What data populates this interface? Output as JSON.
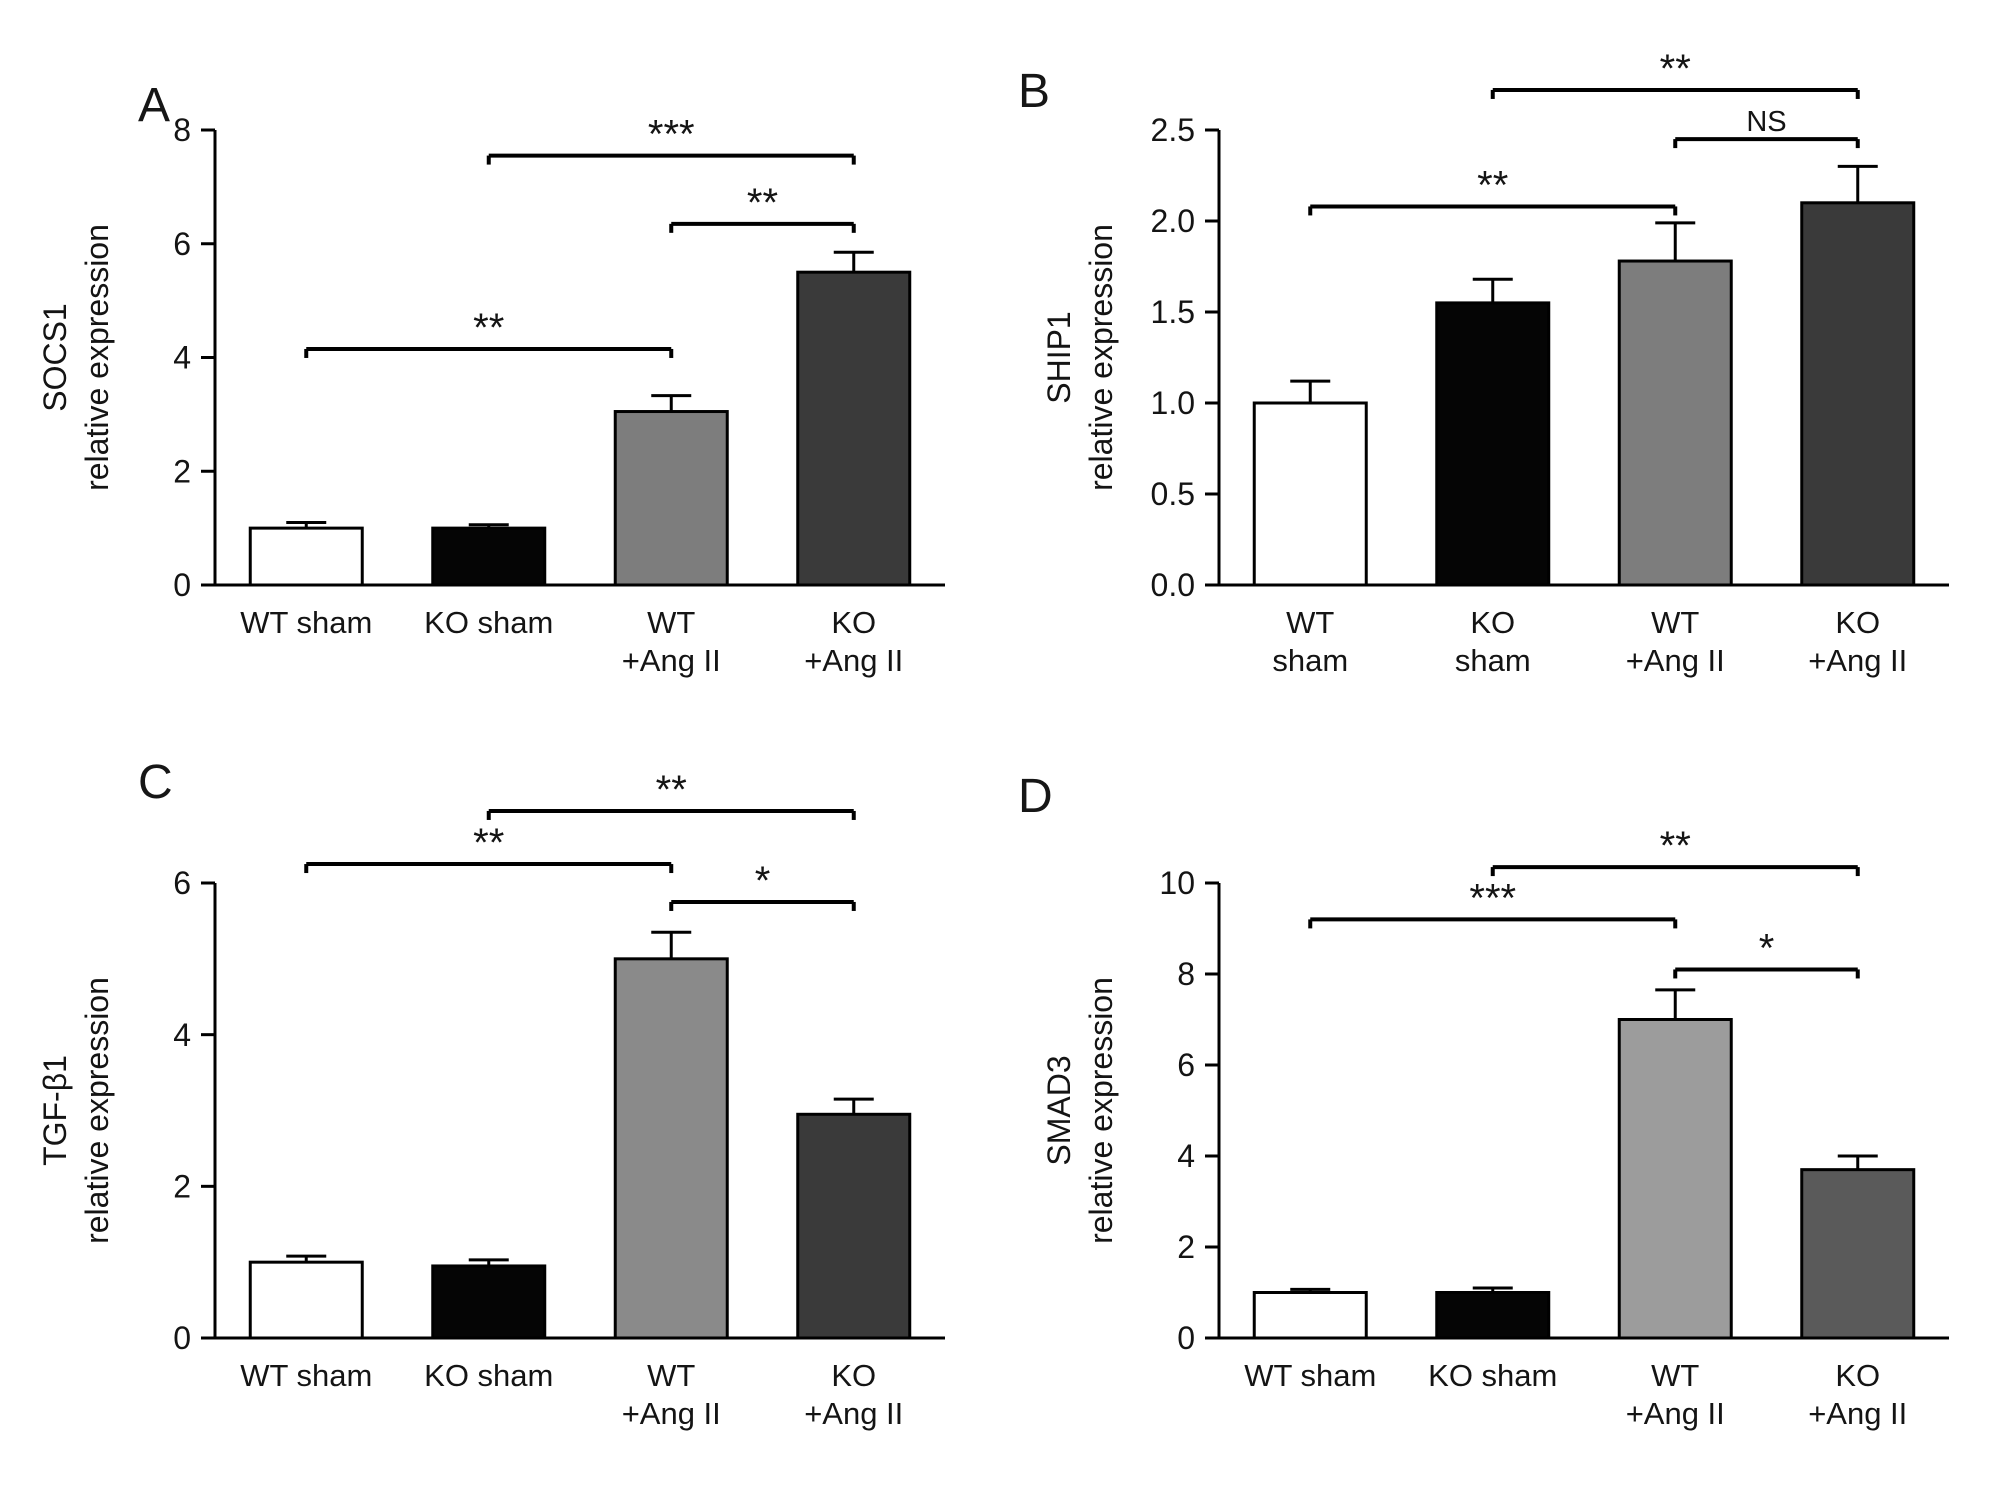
{
  "style": {
    "background": "#ffffff",
    "axis_color": "#000000",
    "text_color": "#141414"
  },
  "chart_data": [
    {
      "type": "bar",
      "panel_letter": "A",
      "ylabel_line1": "SOCS1",
      "ylabel_line2": "relative expression",
      "categories": [
        [
          "WT sham"
        ],
        [
          "KO sham"
        ],
        [
          "WT",
          "+Ang II"
        ],
        [
          "KO",
          "+Ang II"
        ]
      ],
      "values": [
        1.0,
        1.0,
        3.05,
        5.5
      ],
      "errors": [
        0.1,
        0.06,
        0.28,
        0.35
      ],
      "bar_colors": [
        "#ffffff",
        "#050505",
        "#7d7d7d",
        "#3a3a3a"
      ],
      "ylim": [
        0,
        8
      ],
      "yticks": [
        0,
        2,
        4,
        6,
        8
      ],
      "ytick_labels": [
        "0",
        "2",
        "4",
        "6",
        "8"
      ],
      "grid": false,
      "legend": "none",
      "significance": [
        {
          "from": 0,
          "to": 2,
          "y": 4.15,
          "label": "**"
        },
        {
          "from": 2,
          "to": 3,
          "y": 6.35,
          "label": "**"
        },
        {
          "from": 1,
          "to": 3,
          "y": 7.55,
          "label": "***"
        }
      ]
    },
    {
      "type": "bar",
      "panel_letter": "B",
      "ylabel_line1": "SHIP1",
      "ylabel_line2": "relative expression",
      "categories": [
        [
          "WT",
          "sham"
        ],
        [
          "KO",
          "sham"
        ],
        [
          "WT",
          "+Ang II"
        ],
        [
          "KO",
          "+Ang II"
        ]
      ],
      "values": [
        1.0,
        1.55,
        1.78,
        2.1
      ],
      "errors": [
        0.12,
        0.13,
        0.21,
        0.2
      ],
      "bar_colors": [
        "#ffffff",
        "#050505",
        "#7d7d7d",
        "#3a3a3a"
      ],
      "ylim": [
        0,
        2.5
      ],
      "yticks": [
        0,
        0.5,
        1,
        1.5,
        2,
        2.5
      ],
      "ytick_labels": [
        "0.0",
        "0.5",
        "1.0",
        "1.5",
        "2.0",
        "2.5"
      ],
      "grid": false,
      "legend": "none",
      "significance": [
        {
          "from": 0,
          "to": 2,
          "y": 2.08,
          "label": "**"
        },
        {
          "from": 2,
          "to": 3,
          "y": 2.45,
          "label": "NS"
        },
        {
          "from": 1,
          "to": 3,
          "y": 2.72,
          "label": "**"
        }
      ]
    },
    {
      "type": "bar",
      "panel_letter": "C",
      "ylabel_line1": "TGF-β1",
      "ylabel_line2": "relative expression",
      "categories": [
        [
          "WT sham"
        ],
        [
          "KO sham"
        ],
        [
          "WT",
          "+Ang II"
        ],
        [
          "KO",
          "+Ang II"
        ]
      ],
      "values": [
        1.0,
        0.95,
        5.0,
        2.95
      ],
      "errors": [
        0.08,
        0.08,
        0.35,
        0.2
      ],
      "bar_colors": [
        "#ffffff",
        "#050505",
        "#8a8a8a",
        "#3a3a3a"
      ],
      "ylim": [
        0,
        6
      ],
      "yticks": [
        0,
        2,
        4,
        6
      ],
      "ytick_labels": [
        "0",
        "2",
        "4",
        "6"
      ],
      "grid": false,
      "legend": "none",
      "significance": [
        {
          "from": 0,
          "to": 2,
          "y": 6.25,
          "label": "**"
        },
        {
          "from": 2,
          "to": 3,
          "y": 5.75,
          "label": "*"
        },
        {
          "from": 1,
          "to": 3,
          "y": 6.95,
          "label": "**"
        }
      ]
    },
    {
      "type": "bar",
      "panel_letter": "D",
      "ylabel_line1": "SMAD3",
      "ylabel_line2": "relative expression",
      "categories": [
        [
          "WT sham"
        ],
        [
          "KO sham"
        ],
        [
          "WT",
          "+Ang II"
        ],
        [
          "KO",
          "+Ang II"
        ]
      ],
      "values": [
        1.0,
        1.0,
        7.0,
        3.7
      ],
      "errors": [
        0.07,
        0.1,
        0.65,
        0.3
      ],
      "bar_colors": [
        "#ffffff",
        "#050505",
        "#9c9c9c",
        "#5a5a5a"
      ],
      "ylim": [
        0,
        10
      ],
      "yticks": [
        0,
        2,
        4,
        6,
        8,
        10
      ],
      "ytick_labels": [
        "0",
        "2",
        "4",
        "6",
        "8",
        "10"
      ],
      "grid": false,
      "legend": "none",
      "significance": [
        {
          "from": 0,
          "to": 2,
          "y": 9.2,
          "label": "***"
        },
        {
          "from": 2,
          "to": 3,
          "y": 8.1,
          "label": "*"
        },
        {
          "from": 1,
          "to": 3,
          "y": 10.35,
          "label": "**"
        }
      ]
    }
  ]
}
